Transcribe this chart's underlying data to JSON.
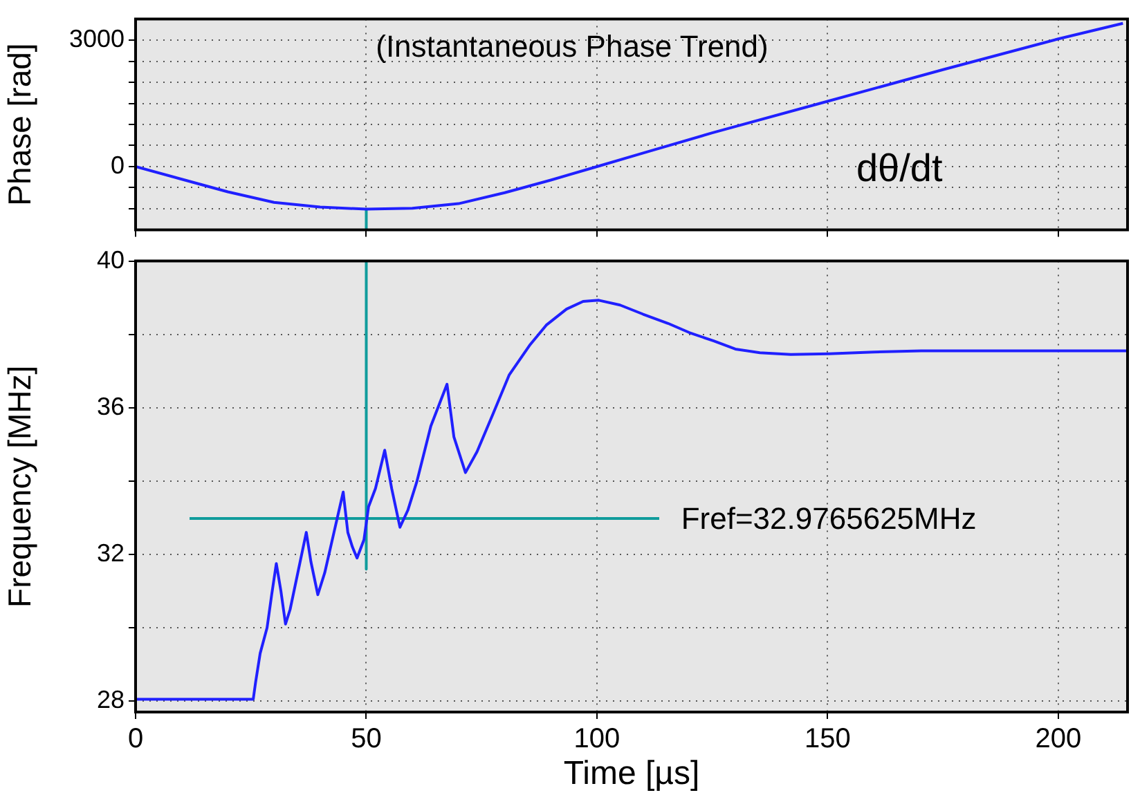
{
  "chart_data": [
    {
      "type": "line",
      "ylabel": "Phase [rad]",
      "annotations": [
        "(Instantaneous Phase Trend)",
        "dθ/dt"
      ],
      "xlim": [
        0,
        215
      ],
      "xticks": [
        0,
        50,
        100,
        150,
        200
      ],
      "ylim": [
        -1500,
        3500
      ],
      "yticks": [
        {
          "value": -1000,
          "label": null
        },
        {
          "value": -500,
          "label": null
        },
        0,
        {
          "value": 500,
          "label": null
        },
        {
          "value": 1000,
          "label": null
        },
        {
          "value": 1500,
          "label": null
        },
        {
          "value": 2000,
          "label": null
        },
        {
          "value": 2500,
          "label": null
        },
        3000
      ],
      "tick_labels": "y",
      "grid": true,
      "legend": false,
      "marker": "none",
      "line_style": "solid",
      "series": [
        {
          "color": "#2020ff",
          "x": [
            0,
            10,
            20,
            30,
            40,
            50,
            60,
            70,
            80,
            90,
            100,
            110,
            125,
            150,
            175,
            200,
            214
          ],
          "values": [
            0,
            -300,
            -600,
            -850,
            -960,
            -1010,
            -990,
            -880,
            -620,
            -320,
            0,
            320,
            800,
            1550,
            2300,
            3030,
            3400
          ]
        },
        {
          "color": "#109c9c",
          "x": [
            50,
            50
          ],
          "values": [
            -1010,
            -1500
          ]
        }
      ]
    },
    {
      "type": "line",
      "xlabel": "Time [µs]",
      "ylabel": "Frequency [MHz]",
      "annotations": [
        "Fref=32.9765625MHz"
      ],
      "xlim": [
        0,
        215
      ],
      "xticks": [
        0,
        50,
        100,
        150,
        200
      ],
      "ylim": [
        27.7,
        40
      ],
      "yticks": [
        28,
        {
          "value": 30,
          "label": null
        },
        32,
        {
          "value": 34,
          "label": null
        },
        36,
        {
          "value": 38,
          "label": null
        },
        40
      ],
      "grid": true,
      "legend": false,
      "marker": "none",
      "line_style": "solid",
      "series": [
        {
          "color": "#2020ff",
          "x": [
            0,
            25.5,
            26,
            27,
            28.5,
            29.5,
            30.5,
            31.5,
            32.5,
            33.5,
            35,
            37,
            38,
            39.5,
            41,
            43,
            45,
            46,
            47,
            48,
            49.5,
            50.5,
            52,
            54,
            55.5,
            57.3,
            59,
            61,
            64,
            67.5,
            69,
            71.5,
            74,
            77.5,
            81,
            85.4,
            89,
            93.4,
            97,
            100.4,
            105,
            110,
            115.4,
            120,
            125.3,
            130,
            135.3,
            142,
            150.3,
            160,
            170.3,
            190,
            215
          ],
          "values": [
            28.05,
            28.05,
            28.5,
            29.3,
            30,
            30.9,
            31.75,
            31,
            30.1,
            30.5,
            31.4,
            32.6,
            31.8,
            30.9,
            31.5,
            32.6,
            33.7,
            32.6,
            32.2,
            31.9,
            32.4,
            33.3,
            33.8,
            34.84,
            33.8,
            32.74,
            33.2,
            34,
            35.5,
            36.64,
            35.2,
            34.23,
            34.8,
            35.84,
            36.9,
            37.7,
            38.25,
            38.69,
            38.9,
            38.93,
            38.8,
            38.55,
            38.3,
            38.05,
            37.82,
            37.6,
            37.5,
            37.45,
            37.47,
            37.52,
            37.55,
            37.55,
            37.55
          ]
        },
        {
          "color": "#109c9c",
          "x": [
            50,
            50
          ],
          "values": [
            40,
            31.6
          ]
        },
        {
          "color": "#109c9c",
          "x": [
            11.7,
            113.5
          ],
          "values": [
            32.98,
            32.98
          ]
        }
      ]
    }
  ]
}
